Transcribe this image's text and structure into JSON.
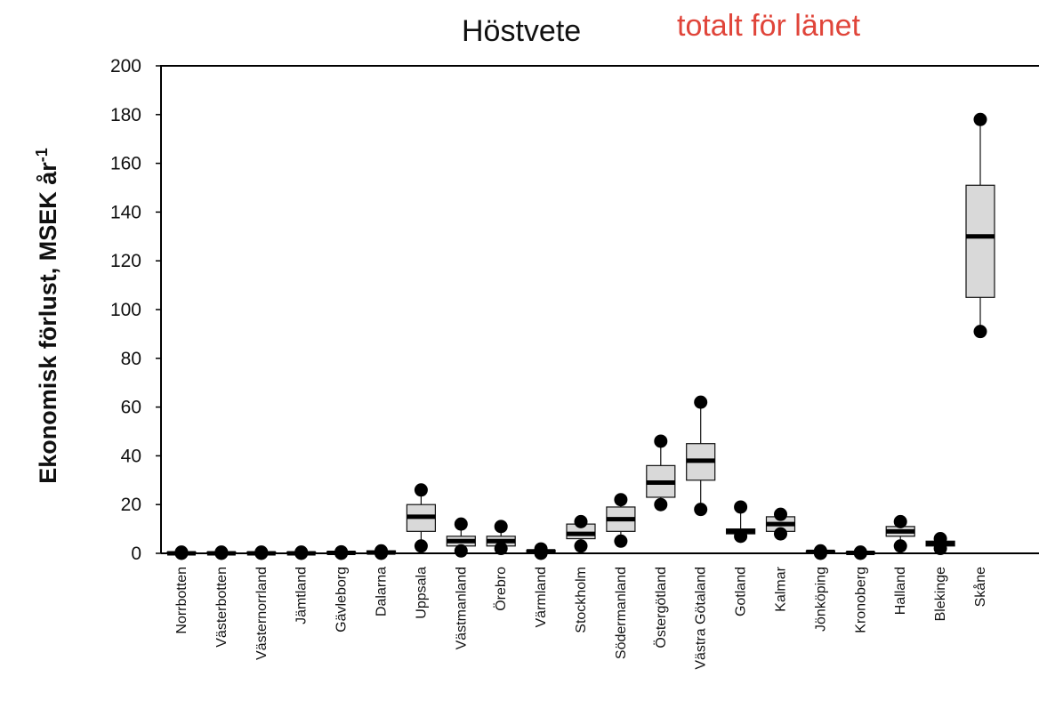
{
  "chart_data": {
    "type": "box",
    "title": "Höstvete",
    "subtitle": "totalt för länet",
    "xlabel": "",
    "ylabel": "Ekonomisk förlust, MSEK år",
    "ylabel_superscript": "-1",
    "ylim": [
      0,
      200
    ],
    "yticks": [
      0,
      20,
      40,
      60,
      80,
      100,
      120,
      140,
      160,
      180,
      200
    ],
    "grid": false,
    "legend": "none",
    "categories": [
      "Norrbotten",
      "Västerbotten",
      "Västernorrland",
      "Jämtland",
      "Gävleborg",
      "Dalarna",
      "Uppsala",
      "Västmanland",
      "Örebro",
      "Värmland",
      "Stockholm",
      "Södermanland",
      "Östergötland",
      "Västra Götaland",
      "Gotland",
      "Kalmar",
      "Jönköping",
      "Kronoberg",
      "Halland",
      "Blekinge",
      "Skåne"
    ],
    "series": [
      {
        "boxes": [
          {
            "min": 0,
            "q1": 0,
            "median": 0,
            "q3": 0.5,
            "max": 0.5
          },
          {
            "min": 0,
            "q1": 0,
            "median": 0,
            "q3": 0.5,
            "max": 0.5
          },
          {
            "min": 0,
            "q1": 0,
            "median": 0,
            "q3": 0.5,
            "max": 0.5
          },
          {
            "min": 0,
            "q1": 0,
            "median": 0,
            "q3": 0.5,
            "max": 0.5
          },
          {
            "min": 0,
            "q1": 0,
            "median": 0.2,
            "q3": 0.6,
            "max": 0.6
          },
          {
            "min": 0,
            "q1": 0,
            "median": 0.3,
            "q3": 1,
            "max": 1
          },
          {
            "min": 3,
            "q1": 9,
            "median": 15,
            "q3": 20,
            "max": 26
          },
          {
            "min": 1,
            "q1": 3,
            "median": 5,
            "q3": 7,
            "max": 12
          },
          {
            "min": 2,
            "q1": 3,
            "median": 5,
            "q3": 7,
            "max": 11
          },
          {
            "min": 0,
            "q1": 0.3,
            "median": 0.8,
            "q3": 1.3,
            "max": 1.8
          },
          {
            "min": 3,
            "q1": 6,
            "median": 8,
            "q3": 12,
            "max": 13
          },
          {
            "min": 5,
            "q1": 9,
            "median": 14,
            "q3": 19,
            "max": 22
          },
          {
            "min": 20,
            "q1": 23,
            "median": 29,
            "q3": 36,
            "max": 46
          },
          {
            "min": 18,
            "q1": 30,
            "median": 38,
            "q3": 45,
            "max": 62
          },
          {
            "min": 7,
            "q1": 8,
            "median": 9,
            "q3": 10,
            "max": 19
          },
          {
            "min": 8,
            "q1": 9,
            "median": 12,
            "q3": 15,
            "max": 16
          },
          {
            "min": 0,
            "q1": 0.2,
            "median": 0.6,
            "q3": 1,
            "max": 1
          },
          {
            "min": 0,
            "q1": 0,
            "median": 0.2,
            "q3": 0.5,
            "max": 0.5
          },
          {
            "min": 3,
            "q1": 7,
            "median": 9,
            "q3": 11,
            "max": 13
          },
          {
            "min": 2,
            "q1": 3,
            "median": 4,
            "q3": 5,
            "max": 6
          },
          {
            "min": 91,
            "q1": 105,
            "median": 130,
            "q3": 151,
            "max": 178
          }
        ]
      }
    ]
  },
  "colors": {
    "title": "#111111",
    "subtitle": "#e0453a",
    "box_fill": "#d9d9d9",
    "box_stroke": "#111111",
    "median": "#000000",
    "points": "#000000"
  }
}
